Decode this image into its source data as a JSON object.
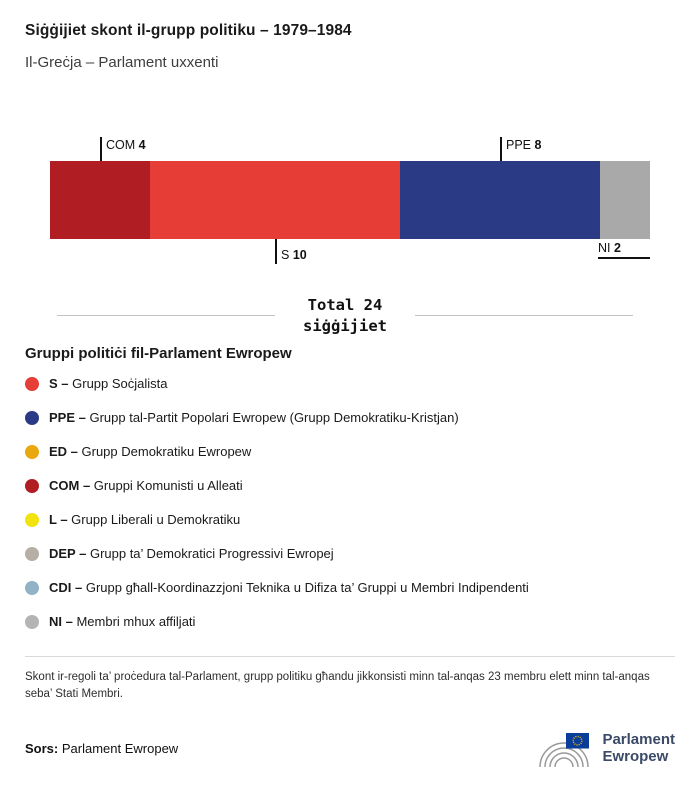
{
  "header": {
    "title": "Siġġijiet skont il-grupp politiku – 1979–1984",
    "subtitle": "Il-Greċja – Parlament uxxenti"
  },
  "chart_data": {
    "type": "bar",
    "variant": "horizontal-stacked",
    "title": "Siġġijiet skont il-grupp politiku – 1979–1984",
    "subtitle": "Il-Greċja – Parlament uxxenti",
    "total": 24,
    "total_label_line1": "Total 24",
    "total_label_line2": "siġġijiet",
    "segments": [
      {
        "label": "COM",
        "value": 4,
        "color": "#b01e23",
        "callout": "top"
      },
      {
        "label": "S",
        "value": 10,
        "color": "#e63e36",
        "callout": "bottom"
      },
      {
        "label": "PPE",
        "value": 8,
        "color": "#2b3a85",
        "callout": "top"
      },
      {
        "label": "NI",
        "value": 2,
        "color": "#a9a9a9",
        "callout": "bottom-underline"
      }
    ]
  },
  "legend": {
    "heading": "Gruppi politiċi fil-Parlament Ewropew",
    "items": [
      {
        "abbr": "S",
        "name": "Grupp Soċjalista",
        "color": "#e63e36"
      },
      {
        "abbr": "PPE",
        "name": "Grupp tal-Partit Popolari Ewropew (Grupp Demokratiku-Kristjan)",
        "color": "#2b3a85"
      },
      {
        "abbr": "ED",
        "name": "Grupp Demokratiku Ewropew",
        "color": "#eaa810"
      },
      {
        "abbr": "COM",
        "name": "Gruppi Komunisti u Alleati",
        "color": "#b01e23"
      },
      {
        "abbr": "L",
        "name": "Grupp Liberali u Demokratiku",
        "color": "#f2e30e"
      },
      {
        "abbr": "DEP",
        "name": "Grupp ta’ Demokratici Progressivi Ewropej",
        "color": "#b7afa4"
      },
      {
        "abbr": "CDI",
        "name": "Grupp għall-Koordinazzjoni Teknika u Difiza ta’ Gruppi u Membri Indipendenti",
        "color": "#92b2c6"
      },
      {
        "abbr": "NI",
        "name": "Membri mhux affiljati",
        "color": "#b4b4b4"
      }
    ]
  },
  "note": "Skont ir-regoli ta’ proċedura tal-Parlament, grupp politiku għandu jikkonsisti minn tal-anqas 23 membru elett minn tal-anqas seba’ Stati Membri.",
  "footer": {
    "source_label": "Sors:",
    "source_value": "Parlament Ewropew",
    "logo_line1": "Parlament",
    "logo_line2": "Ewropew"
  }
}
